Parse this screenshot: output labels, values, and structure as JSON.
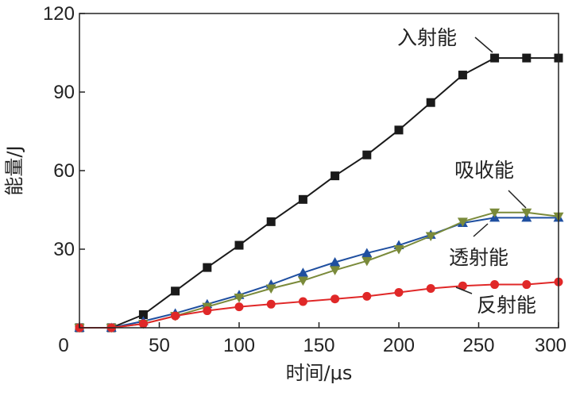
{
  "chart_data": {
    "type": "line",
    "xlabel": "时间/μs",
    "ylabel": "能量/J",
    "xlim": [
      0,
      300
    ],
    "ylim": [
      0,
      120
    ],
    "xticks": [
      0,
      50,
      100,
      150,
      200,
      250,
      300
    ],
    "yticks": [
      0,
      30,
      60,
      90,
      120
    ],
    "grid": false,
    "legend": "none",
    "series": [
      {
        "name": "入射能",
        "color": "#1a1a1a",
        "marker": "square",
        "x": [
          0,
          20,
          40,
          60,
          80,
          100,
          120,
          140,
          160,
          180,
          200,
          220,
          240,
          260,
          280,
          300
        ],
        "y": [
          0,
          0,
          5,
          14,
          23,
          31.5,
          40.5,
          49,
          58,
          66,
          75.5,
          86,
          96.5,
          103,
          103,
          103
        ]
      },
      {
        "name": "透射能",
        "color": "#1f4fa0",
        "marker": "triangle-up",
        "x": [
          0,
          20,
          40,
          60,
          80,
          100,
          120,
          140,
          160,
          180,
          200,
          220,
          240,
          260,
          280,
          300
        ],
        "y": [
          0,
          0,
          2.5,
          5.5,
          9,
          12.5,
          16.5,
          21,
          25,
          28.5,
          31.5,
          35.5,
          40,
          42,
          42,
          42
        ]
      },
      {
        "name": "吸收能",
        "color": "#7a8a3a",
        "marker": "triangle-down",
        "x": [
          0,
          20,
          40,
          60,
          80,
          100,
          120,
          140,
          160,
          180,
          200,
          220,
          240,
          260,
          280,
          300
        ],
        "y": [
          0,
          0,
          1.5,
          4.5,
          8,
          11.5,
          15,
          18,
          22,
          25.5,
          30,
          35,
          40.5,
          44,
          44,
          42.5
        ]
      },
      {
        "name": "反射能",
        "color": "#e02828",
        "marker": "circle",
        "x": [
          0,
          20,
          40,
          60,
          80,
          100,
          120,
          140,
          160,
          180,
          200,
          220,
          240,
          260,
          280,
          300
        ],
        "y": [
          0,
          0,
          1.5,
          4.5,
          6.5,
          8,
          9,
          10,
          11,
          12,
          13.5,
          15,
          16,
          16.5,
          16.5,
          17.5
        ]
      }
    ],
    "annotations": [
      {
        "text": "入射能",
        "series": "入射能"
      },
      {
        "text": "吸收能",
        "series": "吸收能"
      },
      {
        "text": "透射能",
        "series": "透射能"
      },
      {
        "text": "反射能",
        "series": "反射能"
      }
    ]
  }
}
